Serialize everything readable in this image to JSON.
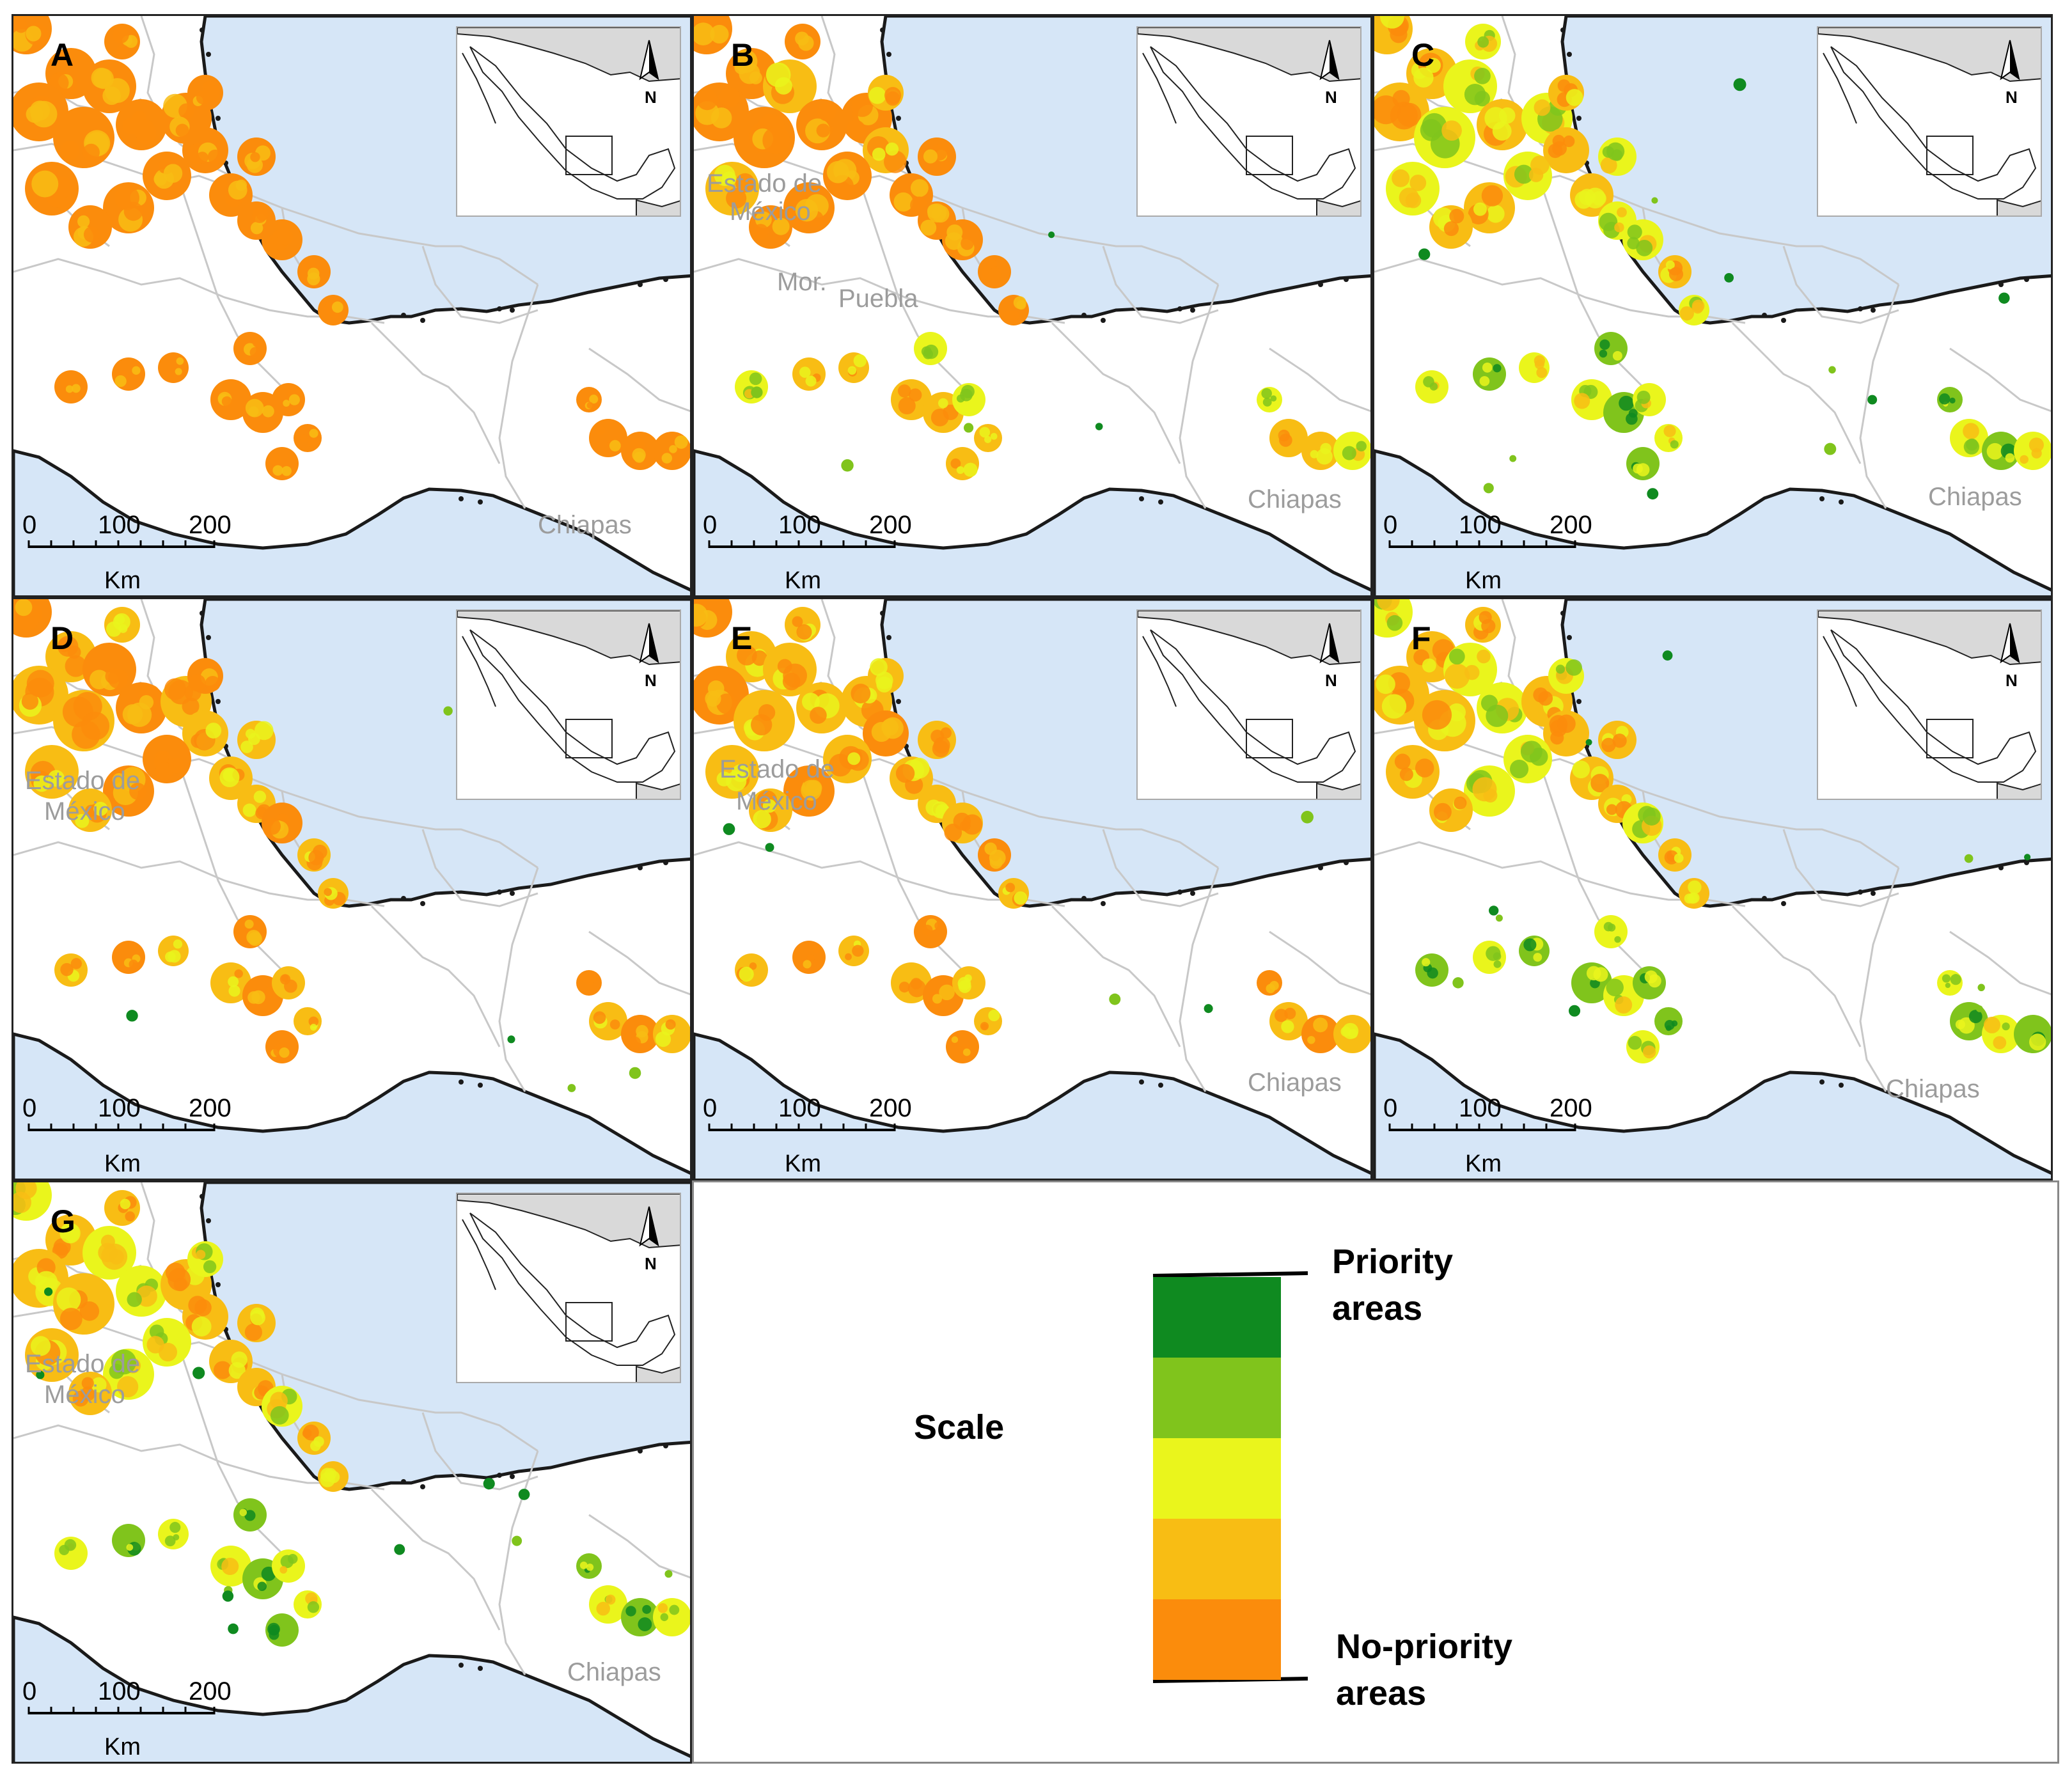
{
  "panels": [
    {
      "label": "A",
      "places": []
    },
    {
      "label": "B",
      "places": [
        "Estado de",
        "México",
        "Mor.",
        "Puebla",
        "Chiapas"
      ]
    },
    {
      "label": "C",
      "places": [
        "Chiapas"
      ]
    },
    {
      "label": "D",
      "places": [
        "Estado de",
        "México"
      ]
    },
    {
      "label": "E",
      "places": [
        "Estado de",
        "México",
        "Chiapas"
      ]
    },
    {
      "label": "F",
      "places": [
        "Chiapas"
      ]
    },
    {
      "label": "G",
      "places": [
        "Estado de",
        "México",
        "Chiapas"
      ]
    }
  ],
  "panel_a_place": "Chiapas",
  "panel_d_place": "",
  "scalebar": {
    "ticks": [
      "0",
      "100",
      "200"
    ],
    "unit": "Km"
  },
  "north_label": "N",
  "legend": {
    "title": "Scale",
    "top_label_line1": "Priority",
    "top_label_line2": "areas",
    "bottom_label_line1": "No-priority",
    "bottom_label_line2": "areas",
    "classes": [
      "#0f8a20",
      "#80c41c",
      "#eaf51c",
      "#f8bd14",
      "#fb8c0c"
    ]
  },
  "colors": {
    "sea": "#d6e6f7",
    "land": "#ffffff",
    "inset_land": "#d9d9d9",
    "borders": "#c8c8c8",
    "coast": "#1a1a1a",
    "level1": "#fb8c0c",
    "level2": "#f8bd14",
    "level3": "#eaf51c",
    "level4": "#80c41c",
    "level5": "#0f8a20"
  }
}
